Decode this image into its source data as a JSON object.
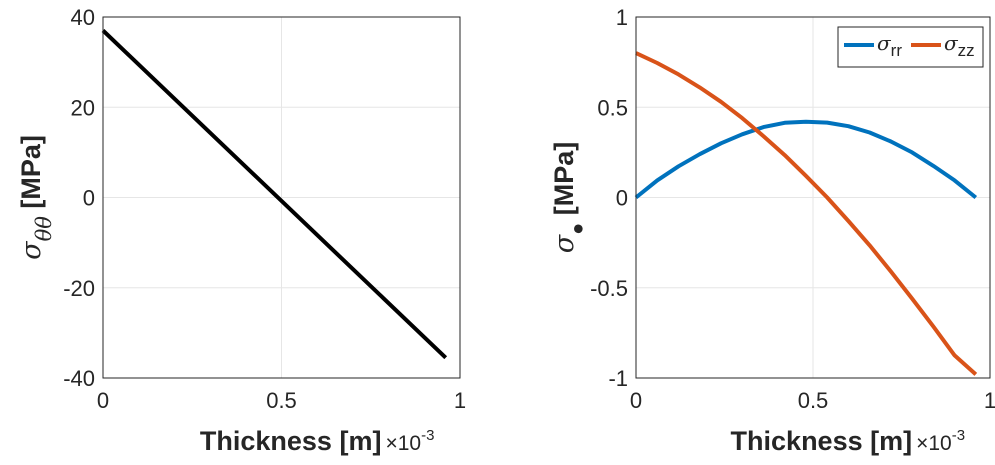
{
  "chart_data": [
    {
      "type": "line",
      "xlabel": "Thickness [m]",
      "xscale_label": "×10",
      "xscale_exp": "-3",
      "ylabel_symbol": "σ",
      "ylabel_sub": "θθ",
      "ylabel_unit": " [MPa]",
      "xlim": [
        0,
        1
      ],
      "ylim": [
        -40,
        40
      ],
      "xticks": [
        0,
        0.5,
        1
      ],
      "xtick_labels": [
        "0",
        "0.5",
        "1"
      ],
      "yticks": [
        40,
        20,
        0,
        -20,
        -40
      ],
      "ytick_labels": [
        "40",
        "20",
        "0",
        "-20",
        "-40"
      ],
      "grid": true,
      "series": [
        {
          "color": "#000000",
          "x": [
            0,
            0.96
          ],
          "y": [
            37,
            -35.5
          ]
        }
      ]
    },
    {
      "type": "line",
      "xlabel": "Thickness [m]",
      "xscale_label": "×10",
      "xscale_exp": "-3",
      "ylabel_symbol": "σ",
      "ylabel_sub": "●",
      "ylabel_unit": " [MPa]",
      "xlim": [
        0,
        1
      ],
      "ylim": [
        -1,
        1
      ],
      "xticks": [
        0,
        0.5,
        1
      ],
      "xtick_labels": [
        "0",
        "0.5",
        "1"
      ],
      "yticks": [
        1,
        0.5,
        0,
        -0.5,
        -1
      ],
      "ytick_labels": [
        "1",
        "0.5",
        "0",
        "-0.5",
        "-1"
      ],
      "grid": true,
      "legend_position": "top-right",
      "series": [
        {
          "name_symbol": "σ",
          "name_sub": "rr",
          "color": "#0072BD",
          "x": [
            0,
            0.06,
            0.12,
            0.18,
            0.24,
            0.3,
            0.36,
            0.42,
            0.48,
            0.54,
            0.6,
            0.66,
            0.72,
            0.78,
            0.84,
            0.9,
            0.96
          ],
          "y": [
            0,
            0.095,
            0.173,
            0.24,
            0.3,
            0.35,
            0.39,
            0.414,
            0.42,
            0.415,
            0.395,
            0.36,
            0.31,
            0.25,
            0.175,
            0.095,
            0
          ]
        },
        {
          "name_symbol": "σ",
          "name_sub": "zz",
          "color": "#D95319",
          "x": [
            0,
            0.06,
            0.12,
            0.18,
            0.24,
            0.3,
            0.36,
            0.42,
            0.48,
            0.54,
            0.6,
            0.66,
            0.72,
            0.78,
            0.84,
            0.9,
            0.96
          ],
          "y": [
            0.8,
            0.745,
            0.682,
            0.61,
            0.53,
            0.44,
            0.34,
            0.235,
            0.12,
            0.0,
            -0.13,
            -0.265,
            -0.41,
            -0.56,
            -0.715,
            -0.875,
            -0.98
          ]
        }
      ]
    }
  ]
}
